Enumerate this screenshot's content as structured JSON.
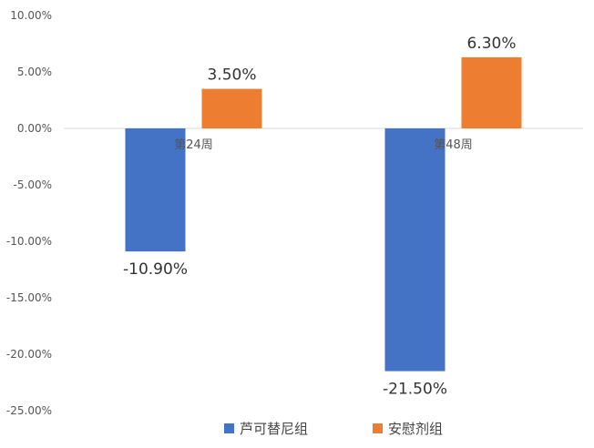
{
  "chart_data": {
    "type": "bar",
    "categories": [
      "第24周",
      "第48周"
    ],
    "series": [
      {
        "name": "芦可替尼组",
        "values": [
          -10.9,
          -21.5
        ],
        "color": "#4472C4"
      },
      {
        "name": "安慰剂组",
        "values": [
          3.5,
          6.3
        ],
        "color": "#ED7D31"
      }
    ],
    "data_labels": [
      [
        "-10.90%",
        "-21.50%"
      ],
      [
        "3.50%",
        "6.30%"
      ]
    ],
    "yticks": [
      "10.00%",
      "5.00%",
      "0.00%",
      "-5.00%",
      "-10.00%",
      "-15.00%",
      "-20.00%",
      "-25.00%"
    ],
    "ylim": [
      -25,
      10
    ],
    "grid": false,
    "legend": "bottom"
  }
}
